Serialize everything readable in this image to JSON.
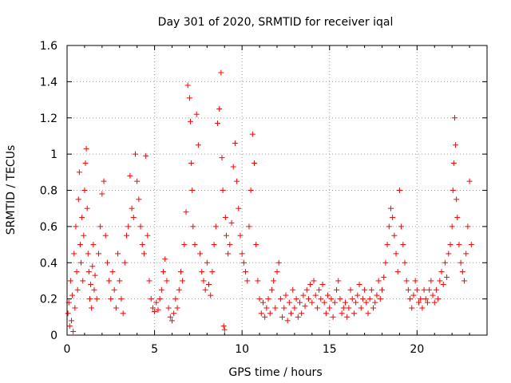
{
  "chart_data": {
    "type": "scatter",
    "title": "Day 301 of 2020, SRMTID for receiver iqal",
    "xlabel": "GPS time / hours",
    "ylabel": "SRMTID / TECUs",
    "xlim": [
      0,
      24
    ],
    "ylim": [
      0,
      1.6
    ],
    "x_ticks": [
      0,
      5,
      10,
      15,
      20
    ],
    "x_tick_labels": [
      "0",
      "5",
      "10",
      "15",
      "20"
    ],
    "y_ticks": [
      0,
      0.2,
      0.4,
      0.6,
      0.8,
      1,
      1.2,
      1.4,
      1.6
    ],
    "y_tick_labels": [
      "0",
      "0.2",
      "0.4",
      "0.6",
      "0.8",
      "1",
      "1.2",
      "1.4",
      "1.6"
    ],
    "grid": true,
    "marker": "plus",
    "color": "#ff0000",
    "series": [
      {
        "name": "SRMTID",
        "points": [
          [
            0.05,
            0.12
          ],
          [
            0.1,
            0.18
          ],
          [
            0.15,
            0.05
          ],
          [
            0.2,
            0.3
          ],
          [
            0.25,
            0.08
          ],
          [
            0.3,
            0.22
          ],
          [
            0.35,
            0.02
          ],
          [
            0.4,
            0.45
          ],
          [
            0.45,
            0.15
          ],
          [
            0.5,
            0.6
          ],
          [
            0.55,
            0.35
          ],
          [
            0.6,
            0.25
          ],
          [
            0.65,
            0.75
          ],
          [
            0.7,
            0.9
          ],
          [
            0.75,
            0.5
          ],
          [
            0.8,
            0.4
          ],
          [
            0.85,
            0.65
          ],
          [
            0.9,
            0.3
          ],
          [
            0.95,
            0.55
          ],
          [
            1.0,
            0.8
          ],
          [
            1.05,
            0.95
          ],
          [
            1.1,
            1.03
          ],
          [
            1.15,
            0.7
          ],
          [
            1.2,
            0.45
          ],
          [
            1.25,
            0.35
          ],
          [
            1.3,
            0.2
          ],
          [
            1.35,
            0.28
          ],
          [
            1.4,
            0.15
          ],
          [
            1.45,
            0.38
          ],
          [
            1.5,
            0.5
          ],
          [
            1.55,
            0.25
          ],
          [
            1.6,
            0.33
          ],
          [
            1.7,
            0.2
          ],
          [
            1.8,
            0.45
          ],
          [
            1.9,
            0.6
          ],
          [
            2.0,
            0.78
          ],
          [
            2.1,
            0.85
          ],
          [
            2.2,
            0.55
          ],
          [
            2.3,
            0.4
          ],
          [
            2.4,
            0.3
          ],
          [
            2.5,
            0.2
          ],
          [
            2.6,
            0.35
          ],
          [
            2.7,
            0.25
          ],
          [
            2.8,
            0.15
          ],
          [
            2.9,
            0.45
          ],
          [
            3.0,
            0.3
          ],
          [
            3.1,
            0.2
          ],
          [
            3.2,
            0.12
          ],
          [
            3.3,
            0.4
          ],
          [
            3.4,
            0.55
          ],
          [
            3.5,
            0.6
          ],
          [
            3.6,
            0.88
          ],
          [
            3.7,
            0.7
          ],
          [
            3.8,
            0.65
          ],
          [
            3.9,
            1.0
          ],
          [
            4.0,
            0.85
          ],
          [
            4.1,
            0.75
          ],
          [
            4.2,
            0.6
          ],
          [
            4.3,
            0.5
          ],
          [
            4.4,
            0.45
          ],
          [
            4.5,
            0.99
          ],
          [
            4.6,
            0.55
          ],
          [
            4.7,
            0.3
          ],
          [
            4.8,
            0.2
          ],
          [
            4.9,
            0.15
          ],
          [
            5.0,
            0.13
          ],
          [
            5.1,
            0.18
          ],
          [
            5.2,
            0.14
          ],
          [
            5.3,
            0.2
          ],
          [
            5.4,
            0.25
          ],
          [
            5.5,
            0.35
          ],
          [
            5.6,
            0.42
          ],
          [
            5.7,
            0.3
          ],
          [
            5.8,
            0.15
          ],
          [
            5.9,
            0.1
          ],
          [
            6.0,
            0.08
          ],
          [
            6.1,
            0.12
          ],
          [
            6.2,
            0.2
          ],
          [
            6.3,
            0.15
          ],
          [
            6.4,
            0.25
          ],
          [
            6.5,
            0.35
          ],
          [
            6.6,
            0.3
          ],
          [
            6.7,
            0.5
          ],
          [
            6.8,
            0.68
          ],
          [
            6.9,
            1.38
          ],
          [
            7.0,
            1.31
          ],
          [
            7.05,
            1.18
          ],
          [
            7.1,
            0.95
          ],
          [
            7.15,
            0.8
          ],
          [
            7.2,
            0.6
          ],
          [
            7.3,
            0.5
          ],
          [
            7.4,
            1.22
          ],
          [
            7.5,
            1.05
          ],
          [
            7.6,
            0.45
          ],
          [
            7.7,
            0.35
          ],
          [
            7.8,
            0.3
          ],
          [
            7.9,
            0.25
          ],
          [
            8.0,
            0.4
          ],
          [
            8.1,
            0.28
          ],
          [
            8.2,
            0.22
          ],
          [
            8.3,
            0.35
          ],
          [
            8.4,
            0.5
          ],
          [
            8.5,
            0.6
          ],
          [
            8.6,
            1.17
          ],
          [
            8.7,
            1.25
          ],
          [
            8.8,
            1.45
          ],
          [
            8.85,
            0.98
          ],
          [
            8.9,
            0.8
          ],
          [
            8.95,
            0.05
          ],
          [
            9.0,
            0.03
          ],
          [
            9.05,
            0.65
          ],
          [
            9.1,
            0.55
          ],
          [
            9.2,
            0.45
          ],
          [
            9.3,
            0.5
          ],
          [
            9.4,
            0.62
          ],
          [
            9.5,
            0.93
          ],
          [
            9.6,
            1.06
          ],
          [
            9.7,
            0.85
          ],
          [
            9.8,
            0.7
          ],
          [
            9.9,
            0.55
          ],
          [
            10.0,
            0.45
          ],
          [
            10.1,
            0.4
          ],
          [
            10.2,
            0.35
          ],
          [
            10.3,
            0.3
          ],
          [
            10.4,
            0.6
          ],
          [
            10.5,
            0.8
          ],
          [
            10.6,
            1.11
          ],
          [
            10.7,
            0.95
          ],
          [
            10.8,
            0.5
          ],
          [
            10.9,
            0.3
          ],
          [
            11.0,
            0.2
          ],
          [
            11.1,
            0.12
          ],
          [
            11.2,
            0.18
          ],
          [
            11.3,
            0.1
          ],
          [
            11.4,
            0.15
          ],
          [
            11.5,
            0.2
          ],
          [
            11.6,
            0.12
          ],
          [
            11.7,
            0.25
          ],
          [
            11.8,
            0.3
          ],
          [
            11.9,
            0.15
          ],
          [
            12.0,
            0.35
          ],
          [
            12.1,
            0.4
          ],
          [
            12.2,
            0.2
          ],
          [
            12.3,
            0.1
          ],
          [
            12.4,
            0.15
          ],
          [
            12.5,
            0.22
          ],
          [
            12.6,
            0.08
          ],
          [
            12.7,
            0.18
          ],
          [
            12.8,
            0.12
          ],
          [
            12.9,
            0.25
          ],
          [
            13.0,
            0.15
          ],
          [
            13.1,
            0.2
          ],
          [
            13.2,
            0.1
          ],
          [
            13.3,
            0.18
          ],
          [
            13.4,
            0.12
          ],
          [
            13.5,
            0.22
          ],
          [
            13.6,
            0.16
          ],
          [
            13.7,
            0.25
          ],
          [
            13.8,
            0.2
          ],
          [
            13.9,
            0.28
          ],
          [
            14.0,
            0.18
          ],
          [
            14.1,
            0.3
          ],
          [
            14.2,
            0.22
          ],
          [
            14.3,
            0.15
          ],
          [
            14.4,
            0.25
          ],
          [
            14.5,
            0.2
          ],
          [
            14.6,
            0.28
          ],
          [
            14.7,
            0.18
          ],
          [
            14.8,
            0.12
          ],
          [
            14.9,
            0.22
          ],
          [
            15.0,
            0.15
          ],
          [
            15.1,
            0.2
          ],
          [
            15.2,
            0.1
          ],
          [
            15.3,
            0.18
          ],
          [
            15.4,
            0.25
          ],
          [
            15.5,
            0.3
          ],
          [
            15.6,
            0.2
          ],
          [
            15.7,
            0.12
          ],
          [
            15.8,
            0.15
          ],
          [
            15.9,
            0.18
          ],
          [
            16.0,
            0.1
          ],
          [
            16.1,
            0.15
          ],
          [
            16.2,
            0.25
          ],
          [
            16.3,
            0.2
          ],
          [
            16.4,
            0.12
          ],
          [
            16.5,
            0.18
          ],
          [
            16.6,
            0.22
          ],
          [
            16.7,
            0.28
          ],
          [
            16.8,
            0.15
          ],
          [
            16.9,
            0.2
          ],
          [
            17.0,
            0.25
          ],
          [
            17.1,
            0.18
          ],
          [
            17.2,
            0.12
          ],
          [
            17.3,
            0.2
          ],
          [
            17.4,
            0.25
          ],
          [
            17.5,
            0.15
          ],
          [
            17.6,
            0.18
          ],
          [
            17.7,
            0.22
          ],
          [
            17.8,
            0.3
          ],
          [
            17.9,
            0.2
          ],
          [
            18.0,
            0.25
          ],
          [
            18.1,
            0.32
          ],
          [
            18.2,
            0.4
          ],
          [
            18.3,
            0.5
          ],
          [
            18.4,
            0.6
          ],
          [
            18.5,
            0.7
          ],
          [
            18.6,
            0.65
          ],
          [
            18.7,
            0.55
          ],
          [
            18.8,
            0.45
          ],
          [
            18.9,
            0.35
          ],
          [
            19.0,
            0.8
          ],
          [
            19.1,
            0.6
          ],
          [
            19.2,
            0.5
          ],
          [
            19.3,
            0.4
          ],
          [
            19.4,
            0.3
          ],
          [
            19.5,
            0.25
          ],
          [
            19.6,
            0.2
          ],
          [
            19.7,
            0.15
          ],
          [
            19.8,
            0.22
          ],
          [
            19.9,
            0.3
          ],
          [
            20.0,
            0.25
          ],
          [
            20.1,
            0.18
          ],
          [
            20.2,
            0.2
          ],
          [
            20.3,
            0.15
          ],
          [
            20.4,
            0.25
          ],
          [
            20.5,
            0.2
          ],
          [
            20.6,
            0.18
          ],
          [
            20.7,
            0.25
          ],
          [
            20.8,
            0.3
          ],
          [
            20.9,
            0.22
          ],
          [
            21.0,
            0.18
          ],
          [
            21.1,
            0.25
          ],
          [
            21.2,
            0.2
          ],
          [
            21.3,
            0.3
          ],
          [
            21.4,
            0.35
          ],
          [
            21.5,
            0.28
          ],
          [
            21.6,
            0.4
          ],
          [
            21.7,
            0.32
          ],
          [
            21.8,
            0.45
          ],
          [
            21.9,
            0.5
          ],
          [
            22.0,
            0.6
          ],
          [
            22.05,
            0.8
          ],
          [
            22.1,
            0.95
          ],
          [
            22.15,
            1.2
          ],
          [
            22.2,
            1.05
          ],
          [
            22.25,
            0.75
          ],
          [
            22.3,
            0.65
          ],
          [
            22.4,
            0.5
          ],
          [
            22.5,
            0.4
          ],
          [
            22.6,
            0.35
          ],
          [
            22.7,
            0.3
          ],
          [
            22.8,
            0.45
          ],
          [
            22.9,
            0.6
          ],
          [
            23.0,
            0.85
          ],
          [
            23.1,
            0.5
          ]
        ]
      }
    ]
  }
}
